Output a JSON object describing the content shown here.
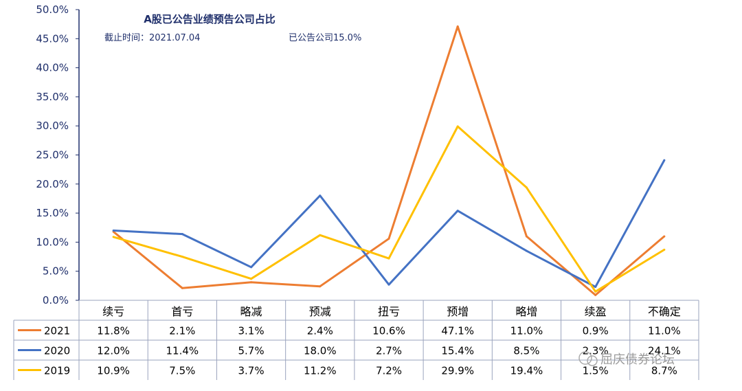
{
  "chart_data": {
    "type": "line",
    "title": "A股已公告业绩预告公司占比",
    "subtitle_left": "截止时间：2021.07.04",
    "subtitle_right": "已公告公司15.0%",
    "categories": [
      "续亏",
      "首亏",
      "略减",
      "预减",
      "扭亏",
      "预增",
      "略增",
      "续盈",
      "不确定"
    ],
    "ylim": [
      0,
      50
    ],
    "yticks": [
      "0.0%",
      "5.0%",
      "10.0%",
      "15.0%",
      "20.0%",
      "25.0%",
      "30.0%",
      "35.0%",
      "40.0%",
      "45.0%",
      "50.0%"
    ],
    "ytick_values": [
      0,
      5,
      10,
      15,
      20,
      25,
      30,
      35,
      40,
      45,
      50
    ],
    "series": [
      {
        "name": "2021",
        "color": "#ED7D31",
        "values": [
          11.8,
          2.1,
          3.1,
          2.4,
          10.6,
          47.1,
          11.0,
          0.9,
          11.0
        ],
        "labels": [
          "11.8%",
          "2.1%",
          "3.1%",
          "2.4%",
          "10.6%",
          "47.1%",
          "11.0%",
          "0.9%",
          "11.0%"
        ]
      },
      {
        "name": "2020",
        "color": "#4472C4",
        "values": [
          12.0,
          11.4,
          5.7,
          18.0,
          2.7,
          15.4,
          8.5,
          2.3,
          24.1
        ],
        "labels": [
          "12.0%",
          "11.4%",
          "5.7%",
          "18.0%",
          "2.7%",
          "15.4%",
          "8.5%",
          "2.3%",
          "24.1%"
        ]
      },
      {
        "name": "2019",
        "color": "#FFC000",
        "values": [
          10.9,
          7.5,
          3.7,
          11.2,
          7.2,
          29.9,
          19.4,
          1.5,
          8.7
        ],
        "labels": [
          "10.9%",
          "7.5%",
          "3.7%",
          "11.2%",
          "7.2%",
          "29.9%",
          "19.4%",
          "1.5%",
          "8.7%"
        ]
      }
    ],
    "grid": false,
    "legend": "data-table"
  },
  "watermark": "屈庆债券论坛",
  "axis_color": "#1f2f6b"
}
